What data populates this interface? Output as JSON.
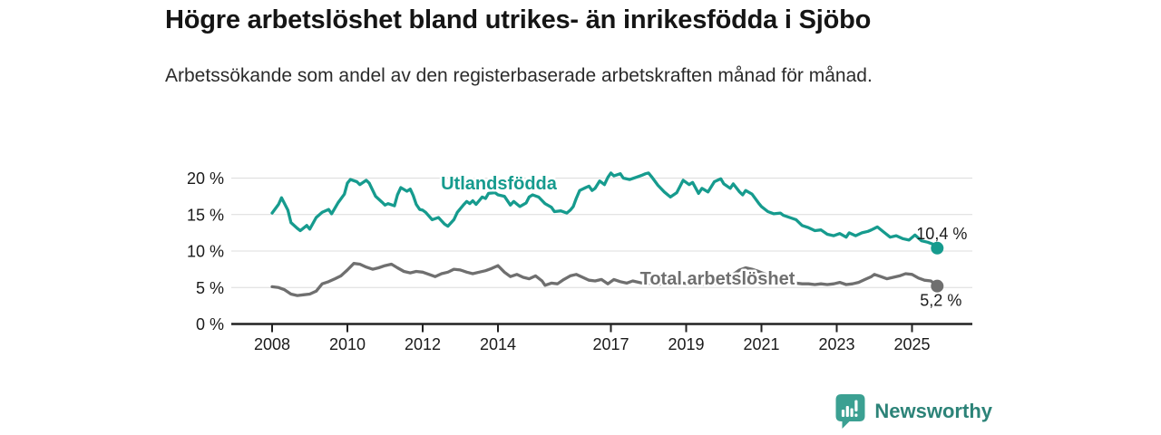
{
  "header": {
    "title": "Högre arbetslöshet bland utrikes- än inrikesfödda i Sjöbo",
    "subtitle": "Arbetssökande som andel av den registerbaserade arbetskraften månad för månad."
  },
  "chart_data": {
    "type": "line",
    "title": "Högre arbetslöshet bland utrikes- än inrikesfödda i Sjöbo",
    "subtitle": "Arbetssökande som andel av den registerbaserade arbetskraften månad för månad.",
    "grid": "horizontal",
    "legend_position": "inline-labels",
    "x_axis": {
      "range": [
        2006.9,
        2027.0
      ],
      "ticks": [
        2008,
        2010,
        2012,
        2014,
        2017,
        2019,
        2021,
        2023,
        2025
      ],
      "tick_labels": [
        "2008",
        "2010",
        "2012",
        "2014",
        "2017",
        "2019",
        "2021",
        "2023",
        "2025"
      ]
    },
    "y_axis": {
      "unit": "%",
      "range": [
        0,
        21.5
      ],
      "ticks": [
        0,
        5,
        10,
        15,
        20
      ],
      "tick_labels": [
        "0 %",
        "5 %",
        "10 %",
        "15 %",
        "20 %"
      ]
    },
    "series": [
      {
        "name": "Utlandsfödda",
        "color": "#169b8e",
        "end_value": 10.4,
        "end_label": "10,4 %",
        "points": [
          [
            2008.0,
            15.2
          ],
          [
            2008.17,
            16.4
          ],
          [
            2008.25,
            17.3
          ],
          [
            2008.42,
            15.6
          ],
          [
            2008.5,
            13.9
          ],
          [
            2008.67,
            13.1
          ],
          [
            2008.75,
            12.8
          ],
          [
            2008.92,
            13.5
          ],
          [
            2009.0,
            13.0
          ],
          [
            2009.17,
            14.6
          ],
          [
            2009.33,
            15.3
          ],
          [
            2009.5,
            15.7
          ],
          [
            2009.58,
            15.1
          ],
          [
            2009.75,
            16.6
          ],
          [
            2009.92,
            17.8
          ],
          [
            2010.0,
            19.3
          ],
          [
            2010.08,
            19.8
          ],
          [
            2010.25,
            19.5
          ],
          [
            2010.33,
            19.1
          ],
          [
            2010.5,
            19.7
          ],
          [
            2010.58,
            19.3
          ],
          [
            2010.75,
            17.5
          ],
          [
            2010.92,
            16.7
          ],
          [
            2011.0,
            16.3
          ],
          [
            2011.08,
            16.5
          ],
          [
            2011.25,
            16.2
          ],
          [
            2011.33,
            17.7
          ],
          [
            2011.42,
            18.7
          ],
          [
            2011.58,
            18.2
          ],
          [
            2011.67,
            18.5
          ],
          [
            2011.75,
            17.6
          ],
          [
            2011.83,
            16.4
          ],
          [
            2011.92,
            15.7
          ],
          [
            2012.0,
            15.6
          ],
          [
            2012.08,
            15.3
          ],
          [
            2012.25,
            14.3
          ],
          [
            2012.42,
            14.6
          ],
          [
            2012.58,
            13.7
          ],
          [
            2012.67,
            13.4
          ],
          [
            2012.83,
            14.3
          ],
          [
            2012.92,
            15.3
          ],
          [
            2013.08,
            16.3
          ],
          [
            2013.17,
            16.8
          ],
          [
            2013.25,
            16.5
          ],
          [
            2013.33,
            16.9
          ],
          [
            2013.42,
            16.4
          ],
          [
            2013.58,
            17.4
          ],
          [
            2013.67,
            17.2
          ],
          [
            2013.75,
            17.9
          ],
          [
            2013.92,
            18.0
          ],
          [
            2014.0,
            17.7
          ],
          [
            2014.17,
            17.5
          ],
          [
            2014.33,
            16.3
          ],
          [
            2014.42,
            16.8
          ],
          [
            2014.58,
            16.1
          ],
          [
            2014.75,
            16.6
          ],
          [
            2014.83,
            17.4
          ],
          [
            2014.92,
            17.7
          ],
          [
            2015.08,
            17.4
          ],
          [
            2015.25,
            16.5
          ],
          [
            2015.42,
            16.0
          ],
          [
            2015.5,
            15.4
          ],
          [
            2015.67,
            15.5
          ],
          [
            2015.83,
            15.2
          ],
          [
            2015.92,
            15.6
          ],
          [
            2016.0,
            16.1
          ],
          [
            2016.08,
            17.2
          ],
          [
            2016.17,
            18.3
          ],
          [
            2016.33,
            18.7
          ],
          [
            2016.42,
            18.9
          ],
          [
            2016.5,
            18.3
          ],
          [
            2016.58,
            18.6
          ],
          [
            2016.7,
            19.6
          ],
          [
            2016.83,
            19.1
          ],
          [
            2016.92,
            20.1
          ],
          [
            2017.0,
            20.7
          ],
          [
            2017.08,
            20.3
          ],
          [
            2017.25,
            20.6
          ],
          [
            2017.33,
            20.0
          ],
          [
            2017.5,
            19.8
          ],
          [
            2017.67,
            20.1
          ],
          [
            2017.83,
            20.4
          ],
          [
            2017.92,
            20.6
          ],
          [
            2018.0,
            20.7
          ],
          [
            2018.08,
            20.2
          ],
          [
            2018.25,
            19.0
          ],
          [
            2018.42,
            18.1
          ],
          [
            2018.58,
            17.4
          ],
          [
            2018.75,
            18.0
          ],
          [
            2018.92,
            19.7
          ],
          [
            2019.08,
            19.1
          ],
          [
            2019.17,
            19.4
          ],
          [
            2019.33,
            17.9
          ],
          [
            2019.42,
            18.6
          ],
          [
            2019.58,
            18.1
          ],
          [
            2019.75,
            19.5
          ],
          [
            2019.92,
            19.9
          ],
          [
            2020.0,
            19.2
          ],
          [
            2020.17,
            18.6
          ],
          [
            2020.25,
            19.2
          ],
          [
            2020.42,
            18.1
          ],
          [
            2020.5,
            17.7
          ],
          [
            2020.58,
            18.3
          ],
          [
            2020.75,
            17.8
          ],
          [
            2020.92,
            16.6
          ],
          [
            2021.0,
            16.1
          ],
          [
            2021.17,
            15.4
          ],
          [
            2021.33,
            15.1
          ],
          [
            2021.5,
            15.2
          ],
          [
            2021.58,
            14.9
          ],
          [
            2021.75,
            14.6
          ],
          [
            2021.92,
            14.3
          ],
          [
            2022.08,
            13.5
          ],
          [
            2022.25,
            13.2
          ],
          [
            2022.42,
            12.8
          ],
          [
            2022.58,
            12.9
          ],
          [
            2022.75,
            12.3
          ],
          [
            2022.92,
            12.1
          ],
          [
            2023.08,
            12.4
          ],
          [
            2023.25,
            11.9
          ],
          [
            2023.33,
            12.5
          ],
          [
            2023.5,
            12.1
          ],
          [
            2023.67,
            12.5
          ],
          [
            2023.83,
            12.7
          ],
          [
            2023.92,
            12.9
          ],
          [
            2024.08,
            13.3
          ],
          [
            2024.25,
            12.6
          ],
          [
            2024.42,
            11.9
          ],
          [
            2024.58,
            12.1
          ],
          [
            2024.75,
            11.7
          ],
          [
            2024.92,
            11.5
          ],
          [
            2025.08,
            12.2
          ],
          [
            2025.25,
            11.4
          ],
          [
            2025.42,
            11.2
          ],
          [
            2025.58,
            10.9
          ],
          [
            2025.67,
            10.4
          ]
        ]
      },
      {
        "name": "Total arbetslöshet",
        "color": "#6f6f6f",
        "end_value": 5.2,
        "end_label": "5,2 %",
        "points": [
          [
            2008.0,
            5.1
          ],
          [
            2008.17,
            5.0
          ],
          [
            2008.33,
            4.7
          ],
          [
            2008.5,
            4.1
          ],
          [
            2008.67,
            3.9
          ],
          [
            2008.83,
            4.0
          ],
          [
            2009.0,
            4.1
          ],
          [
            2009.17,
            4.5
          ],
          [
            2009.33,
            5.5
          ],
          [
            2009.5,
            5.8
          ],
          [
            2009.67,
            6.2
          ],
          [
            2009.83,
            6.6
          ],
          [
            2010.0,
            7.4
          ],
          [
            2010.17,
            8.3
          ],
          [
            2010.33,
            8.2
          ],
          [
            2010.5,
            7.8
          ],
          [
            2010.67,
            7.5
          ],
          [
            2010.83,
            7.7
          ],
          [
            2011.0,
            8.0
          ],
          [
            2011.17,
            8.2
          ],
          [
            2011.33,
            7.7
          ],
          [
            2011.5,
            7.2
          ],
          [
            2011.67,
            7.0
          ],
          [
            2011.83,
            7.2
          ],
          [
            2012.0,
            7.1
          ],
          [
            2012.17,
            6.8
          ],
          [
            2012.33,
            6.5
          ],
          [
            2012.5,
            6.9
          ],
          [
            2012.67,
            7.1
          ],
          [
            2012.83,
            7.5
          ],
          [
            2013.0,
            7.4
          ],
          [
            2013.17,
            7.1
          ],
          [
            2013.33,
            6.9
          ],
          [
            2013.5,
            7.1
          ],
          [
            2013.67,
            7.3
          ],
          [
            2013.83,
            7.6
          ],
          [
            2014.0,
            8.0
          ],
          [
            2014.17,
            7.1
          ],
          [
            2014.33,
            6.5
          ],
          [
            2014.5,
            6.8
          ],
          [
            2014.67,
            6.4
          ],
          [
            2014.83,
            6.2
          ],
          [
            2015.0,
            6.6
          ],
          [
            2015.17,
            5.9
          ],
          [
            2015.25,
            5.3
          ],
          [
            2015.42,
            5.6
          ],
          [
            2015.58,
            5.5
          ],
          [
            2015.75,
            6.1
          ],
          [
            2015.92,
            6.6
          ],
          [
            2016.08,
            6.8
          ],
          [
            2016.25,
            6.4
          ],
          [
            2016.42,
            6.0
          ],
          [
            2016.58,
            5.9
          ],
          [
            2016.75,
            6.1
          ],
          [
            2016.92,
            5.5
          ],
          [
            2017.08,
            6.1
          ],
          [
            2017.25,
            5.8
          ],
          [
            2017.42,
            5.6
          ],
          [
            2017.58,
            5.9
          ],
          [
            2017.75,
            5.7
          ],
          [
            2017.92,
            5.5
          ],
          [
            2018.08,
            5.6
          ],
          [
            2018.25,
            5.4
          ],
          [
            2018.42,
            5.6
          ],
          [
            2018.58,
            5.5
          ],
          [
            2018.75,
            5.7
          ],
          [
            2018.92,
            5.6
          ],
          [
            2019.08,
            5.5
          ],
          [
            2019.25,
            5.3
          ],
          [
            2019.42,
            5.4
          ],
          [
            2019.58,
            5.6
          ],
          [
            2019.75,
            5.5
          ],
          [
            2019.92,
            5.7
          ],
          [
            2020.08,
            6.0
          ],
          [
            2020.25,
            6.8
          ],
          [
            2020.42,
            7.4
          ],
          [
            2020.58,
            7.7
          ],
          [
            2020.75,
            7.5
          ],
          [
            2020.92,
            7.2
          ],
          [
            2021.08,
            6.9
          ],
          [
            2021.25,
            6.5
          ],
          [
            2021.42,
            6.2
          ],
          [
            2021.58,
            5.9
          ],
          [
            2021.75,
            5.7
          ],
          [
            2021.92,
            5.6
          ],
          [
            2022.08,
            5.5
          ],
          [
            2022.25,
            5.5
          ],
          [
            2022.42,
            5.4
          ],
          [
            2022.58,
            5.5
          ],
          [
            2022.75,
            5.4
          ],
          [
            2022.92,
            5.5
          ],
          [
            2023.08,
            5.7
          ],
          [
            2023.25,
            5.4
          ],
          [
            2023.42,
            5.5
          ],
          [
            2023.58,
            5.7
          ],
          [
            2023.75,
            6.1
          ],
          [
            2023.92,
            6.5
          ],
          [
            2024.0,
            6.8
          ],
          [
            2024.17,
            6.5
          ],
          [
            2024.33,
            6.2
          ],
          [
            2024.5,
            6.4
          ],
          [
            2024.67,
            6.6
          ],
          [
            2024.83,
            6.9
          ],
          [
            2025.0,
            6.8
          ],
          [
            2025.17,
            6.3
          ],
          [
            2025.33,
            6.0
          ],
          [
            2025.5,
            5.9
          ],
          [
            2025.67,
            5.2
          ]
        ]
      }
    ]
  },
  "logo": {
    "brand": "Newsworthy",
    "icon": "newsworthy-bar-chart-bubble-icon",
    "icon_color": "#3ba092",
    "text_color": "#2c8378"
  }
}
